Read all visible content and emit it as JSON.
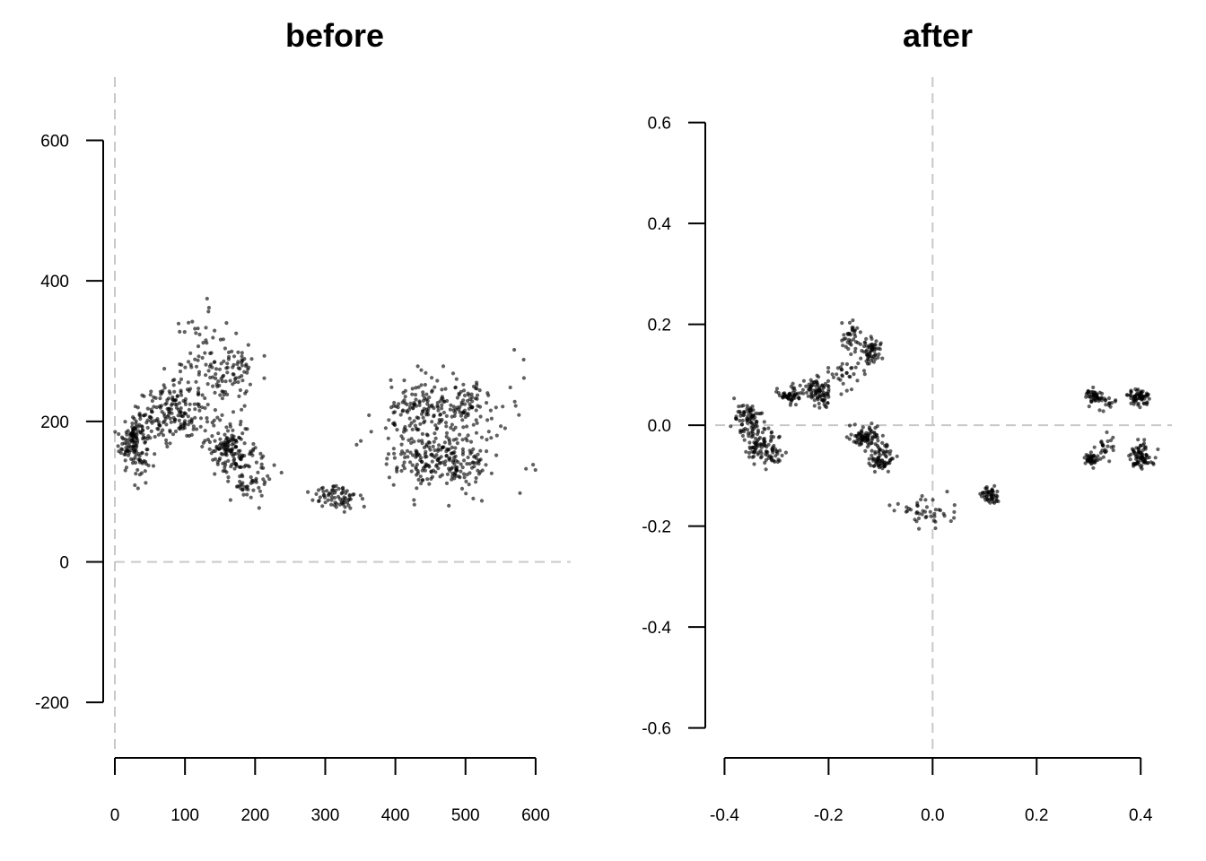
{
  "chart_data": [
    {
      "type": "scatter",
      "title": "before",
      "xlabel": "",
      "ylabel": "",
      "xlim": [
        0,
        650
      ],
      "ylim": [
        -270,
        690
      ],
      "x_ticks": [
        0,
        100,
        200,
        300,
        400,
        500,
        600
      ],
      "y_ticks": [
        -200,
        0,
        200,
        400,
        600
      ],
      "x_tick_labels": [
        "0",
        "100",
        "200",
        "300",
        "400",
        "500",
        "600"
      ],
      "y_tick_labels": [
        "-200",
        "0",
        "200",
        "400",
        "600"
      ],
      "reference_lines": {
        "x": 0,
        "y": 0
      },
      "point_color": "#000000",
      "clusters": [
        {
          "center": [
            28,
            172
          ],
          "spread": [
            11,
            22
          ],
          "n": 150
        },
        {
          "center": [
            72,
            210
          ],
          "spread": [
            18,
            18
          ],
          "n": 90
        },
        {
          "center": [
            105,
            215
          ],
          "spread": [
            18,
            22
          ],
          "n": 80
        },
        {
          "center": [
            125,
            285
          ],
          "spread": [
            20,
            35
          ],
          "n": 70
        },
        {
          "center": [
            170,
            265
          ],
          "spread": [
            16,
            25
          ],
          "n": 70
        },
        {
          "center": [
            160,
            165
          ],
          "spread": [
            15,
            18
          ],
          "n": 110
        },
        {
          "center": [
            190,
            130
          ],
          "spread": [
            18,
            25
          ],
          "n": 80
        },
        {
          "center": [
            318,
            92
          ],
          "spread": [
            20,
            10
          ],
          "n": 70
        },
        {
          "center": [
            432,
            215
          ],
          "spread": [
            22,
            20
          ],
          "n": 110
        },
        {
          "center": [
            500,
            220
          ],
          "spread": [
            20,
            20
          ],
          "n": 90
        },
        {
          "center": [
            440,
            145
          ],
          "spread": [
            22,
            18
          ],
          "n": 110
        },
        {
          "center": [
            495,
            145
          ],
          "spread": [
            20,
            20
          ],
          "n": 90
        },
        {
          "center": [
            470,
            180
          ],
          "spread": [
            55,
            45
          ],
          "n": 60
        },
        {
          "center": [
            560,
            200
          ],
          "spread": [
            30,
            45
          ],
          "n": 12
        }
      ]
    },
    {
      "type": "scatter",
      "title": "after",
      "xlabel": "",
      "ylabel": "",
      "xlim": [
        -0.418,
        0.46
      ],
      "ylim": [
        -0.647,
        0.69
      ],
      "x_ticks": [
        -0.4,
        -0.2,
        0.0,
        0.2,
        0.4
      ],
      "y_ticks": [
        -0.6,
        -0.4,
        -0.2,
        0.0,
        0.2,
        0.4,
        0.6
      ],
      "x_tick_labels": [
        "-0.4",
        "-0.2",
        "0.0",
        "0.2",
        "0.4"
      ],
      "y_tick_labels": [
        "-0.6",
        "-0.4",
        "-0.2",
        "0.0",
        "0.2",
        "0.4",
        "0.6"
      ],
      "reference_lines": {
        "x": 0,
        "y": 0
      },
      "point_color": "#000000",
      "clusters": [
        {
          "center": [
            -0.355,
            0.01
          ],
          "spread": [
            0.012,
            0.015
          ],
          "n": 70
        },
        {
          "center": [
            -0.33,
            -0.035
          ],
          "spread": [
            0.015,
            0.018
          ],
          "n": 90
        },
        {
          "center": [
            -0.305,
            -0.065
          ],
          "spread": [
            0.01,
            0.012
          ],
          "n": 20
        },
        {
          "center": [
            -0.275,
            0.058
          ],
          "spread": [
            0.012,
            0.008
          ],
          "n": 45
        },
        {
          "center": [
            -0.23,
            0.075
          ],
          "spread": [
            0.018,
            0.012
          ],
          "n": 55
        },
        {
          "center": [
            -0.215,
            0.055
          ],
          "spread": [
            0.012,
            0.008
          ],
          "n": 40
        },
        {
          "center": [
            -0.175,
            0.1
          ],
          "spread": [
            0.018,
            0.012
          ],
          "n": 30
        },
        {
          "center": [
            -0.155,
            0.175
          ],
          "spread": [
            0.01,
            0.02
          ],
          "n": 35
        },
        {
          "center": [
            -0.12,
            0.145
          ],
          "spread": [
            0.01,
            0.015
          ],
          "n": 60
        },
        {
          "center": [
            -0.13,
            -0.025
          ],
          "spread": [
            0.014,
            0.012
          ],
          "n": 80
        },
        {
          "center": [
            -0.1,
            -0.065
          ],
          "spread": [
            0.012,
            0.014
          ],
          "n": 70
        },
        {
          "center": [
            -0.01,
            -0.175
          ],
          "spread": [
            0.03,
            0.02
          ],
          "n": 45
        },
        {
          "center": [
            0.11,
            -0.14
          ],
          "spread": [
            0.01,
            0.008
          ],
          "n": 50
        },
        {
          "center": [
            0.31,
            0.058
          ],
          "spread": [
            0.008,
            0.008
          ],
          "n": 45
        },
        {
          "center": [
            0.335,
            0.045
          ],
          "spread": [
            0.008,
            0.006
          ],
          "n": 15
        },
        {
          "center": [
            0.395,
            0.055
          ],
          "spread": [
            0.012,
            0.008
          ],
          "n": 65
        },
        {
          "center": [
            0.305,
            -0.068
          ],
          "spread": [
            0.008,
            0.006
          ],
          "n": 40
        },
        {
          "center": [
            0.33,
            -0.045
          ],
          "spread": [
            0.01,
            0.015
          ],
          "n": 25
        },
        {
          "center": [
            0.4,
            -0.06
          ],
          "spread": [
            0.012,
            0.012
          ],
          "n": 80
        }
      ]
    }
  ]
}
